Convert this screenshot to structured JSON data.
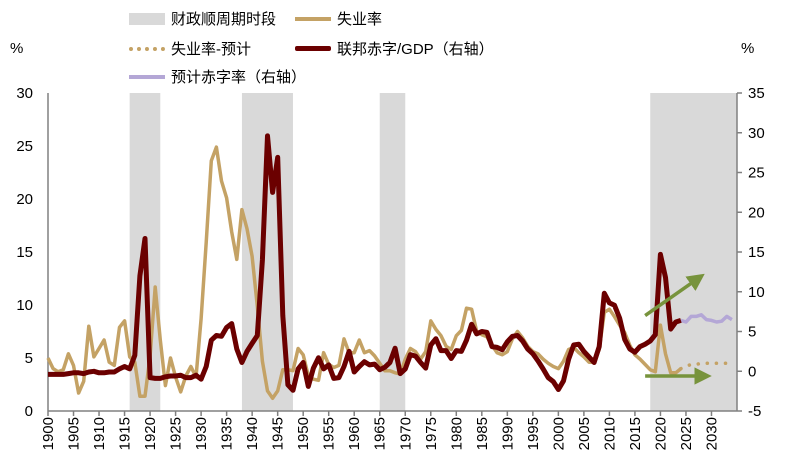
{
  "legend": {
    "shade": "财政顺周期时段",
    "unemp": "失业率",
    "unemp_fc": "失业率-预计",
    "deficit": "联邦赤字/GDP（右轴）",
    "deficit_fc": "预计赤字率（右轴）"
  },
  "units": {
    "left": "%",
    "right": "%"
  },
  "chart_data": {
    "type": "line",
    "x_range": [
      1900,
      2035
    ],
    "x_ticks": [
      1900,
      1905,
      1910,
      1915,
      1920,
      1925,
      1930,
      1935,
      1940,
      1945,
      1950,
      1955,
      1960,
      1965,
      1970,
      1975,
      1980,
      1985,
      1990,
      1995,
      2000,
      2005,
      2010,
      2015,
      2020,
      2025,
      2030
    ],
    "y_left": {
      "range": [
        0,
        30
      ],
      "ticks": [
        0,
        5,
        10,
        15,
        20,
        25,
        30
      ]
    },
    "y_right": {
      "range": [
        -5,
        35
      ],
      "ticks": [
        -5,
        0,
        5,
        10,
        15,
        20,
        25,
        30,
        35
      ]
    },
    "grid": false,
    "legend_position": "top",
    "shaded_periods": [
      [
        1916,
        1922
      ],
      [
        1938,
        1948
      ],
      [
        1965,
        1970
      ],
      [
        2018,
        2035
      ]
    ],
    "colors": {
      "shade": "#d9d9d9",
      "unemp": "#c4a265",
      "deficit": "#6b0000",
      "deficit_fc": "#b4a7d6",
      "arrow": "#77933c",
      "axis": "#808080"
    },
    "series": [
      {
        "name": "失业率",
        "axis": "left",
        "start_year": 1900,
        "values": [
          5,
          4,
          3.7,
          3.9,
          5.4,
          4.3,
          1.7,
          2.8,
          8,
          5.1,
          5.9,
          6.7,
          4.6,
          4.3,
          7.9,
          8.5,
          5.1,
          4.6,
          1.4,
          1.4,
          5.2,
          11.7,
          6.7,
          2.4,
          5,
          3.2,
          1.8,
          3.3,
          4.2,
          3.2,
          8.7,
          15.9,
          23.6,
          24.9,
          21.7,
          20.1,
          16.9,
          14.3,
          19,
          17.2,
          14.6,
          9.9,
          4.7,
          1.9,
          1.2,
          1.9,
          3.9,
          3.9,
          3.8,
          5.9,
          5.3,
          3.3,
          3,
          2.9,
          5.5,
          4.4,
          4.1,
          4.3,
          6.8,
          5.5,
          5.5,
          6.7,
          5.5,
          5.7,
          5.2,
          4.5,
          3.8,
          3.8,
          3.6,
          3.5,
          4.9,
          5.9,
          5.6,
          4.9,
          5.6,
          8.5,
          7.7,
          7.1,
          6.1,
          5.8,
          7.1,
          7.6,
          9.7,
          9.6,
          7.5,
          7.2,
          7,
          6.2,
          5.5,
          5.3,
          5.6,
          6.8,
          7.5,
          6.9,
          6.1,
          5.6,
          5.4,
          4.9,
          4.5,
          4.2,
          4,
          4.7,
          5.8,
          6,
          5.5,
          5.1,
          4.6,
          4.6,
          5.8,
          9.3,
          9.6,
          8.9,
          8.1,
          7.4,
          6.2,
          5.3,
          4.9,
          4.4,
          3.9,
          3.7,
          8.1,
          5.4,
          3.6,
          3.6,
          4
        ]
      },
      {
        "name": "失业率-预计",
        "axis": "left",
        "start_year": 2024,
        "style": "dotted",
        "values": [
          4,
          4.2,
          4.4,
          4.4,
          4.5,
          4.5,
          4.5,
          4.5,
          4.5,
          4.5,
          4.4
        ]
      },
      {
        "name": "联邦赤字/GDP（右轴）",
        "axis": "right",
        "start_year": 1900,
        "values": [
          -0.4,
          -0.4,
          -0.4,
          -0.4,
          -0.3,
          -0.2,
          -0.2,
          -0.3,
          -0.1,
          0,
          -0.2,
          -0.2,
          -0.1,
          -0.1,
          0.3,
          0.6,
          0.3,
          2,
          12,
          16.7,
          -0.8,
          -0.9,
          -0.9,
          -0.7,
          -0.6,
          -0.6,
          -0.5,
          -0.8,
          -0.8,
          -0.5,
          -1,
          0.6,
          3.9,
          4.5,
          4.4,
          5.5,
          6,
          2.8,
          1.1,
          2.5,
          3.5,
          4.5,
          14,
          29.6,
          22.5,
          26.9,
          7,
          -1.7,
          -2.4,
          0.3,
          1.1,
          -1.9,
          0.4,
          1.7,
          0.3,
          0.8,
          -0.9,
          -0.8,
          0.6,
          2.5,
          -0.1,
          0.6,
          1.2,
          0.8,
          0.9,
          0.2,
          0.5,
          1.1,
          2.9,
          -0.3,
          0.3,
          2.1,
          1.9,
          1.1,
          0.4,
          3.3,
          4.1,
          2.6,
          2.6,
          1.6,
          2.6,
          2.5,
          3.9,
          5.9,
          4.7,
          5,
          4.9,
          3.1,
          3,
          2.7,
          3.7,
          4.4,
          4.5,
          3.8,
          2.8,
          2.2,
          1.3,
          0.3,
          -0.8,
          -1.3,
          -2.3,
          -1.2,
          1.5,
          3.3,
          3.4,
          2.5,
          1.8,
          1.1,
          3.1,
          9.8,
          8.6,
          8.3,
          6.7,
          4,
          2.8,
          2.4,
          3.1,
          3.4,
          3.8,
          4.6,
          14.7,
          11.8,
          5.3,
          6.2,
          6.4
        ]
      },
      {
        "name": "预计赤字率（右轴）",
        "axis": "right",
        "start_year": 2024,
        "values": [
          6.4,
          6.2,
          6.9,
          6.9,
          7.1,
          6.5,
          6.4,
          6.2,
          6.3,
          6.9,
          6.5
        ]
      }
    ],
    "annotations": [
      {
        "type": "arrow",
        "axis": "right",
        "from": [
          2017,
          7
        ],
        "to": [
          2027,
          11.5
        ]
      },
      {
        "type": "arrow",
        "axis": "right",
        "from": [
          2017,
          -0.6
        ],
        "to": [
          2028,
          -0.6
        ]
      }
    ]
  }
}
